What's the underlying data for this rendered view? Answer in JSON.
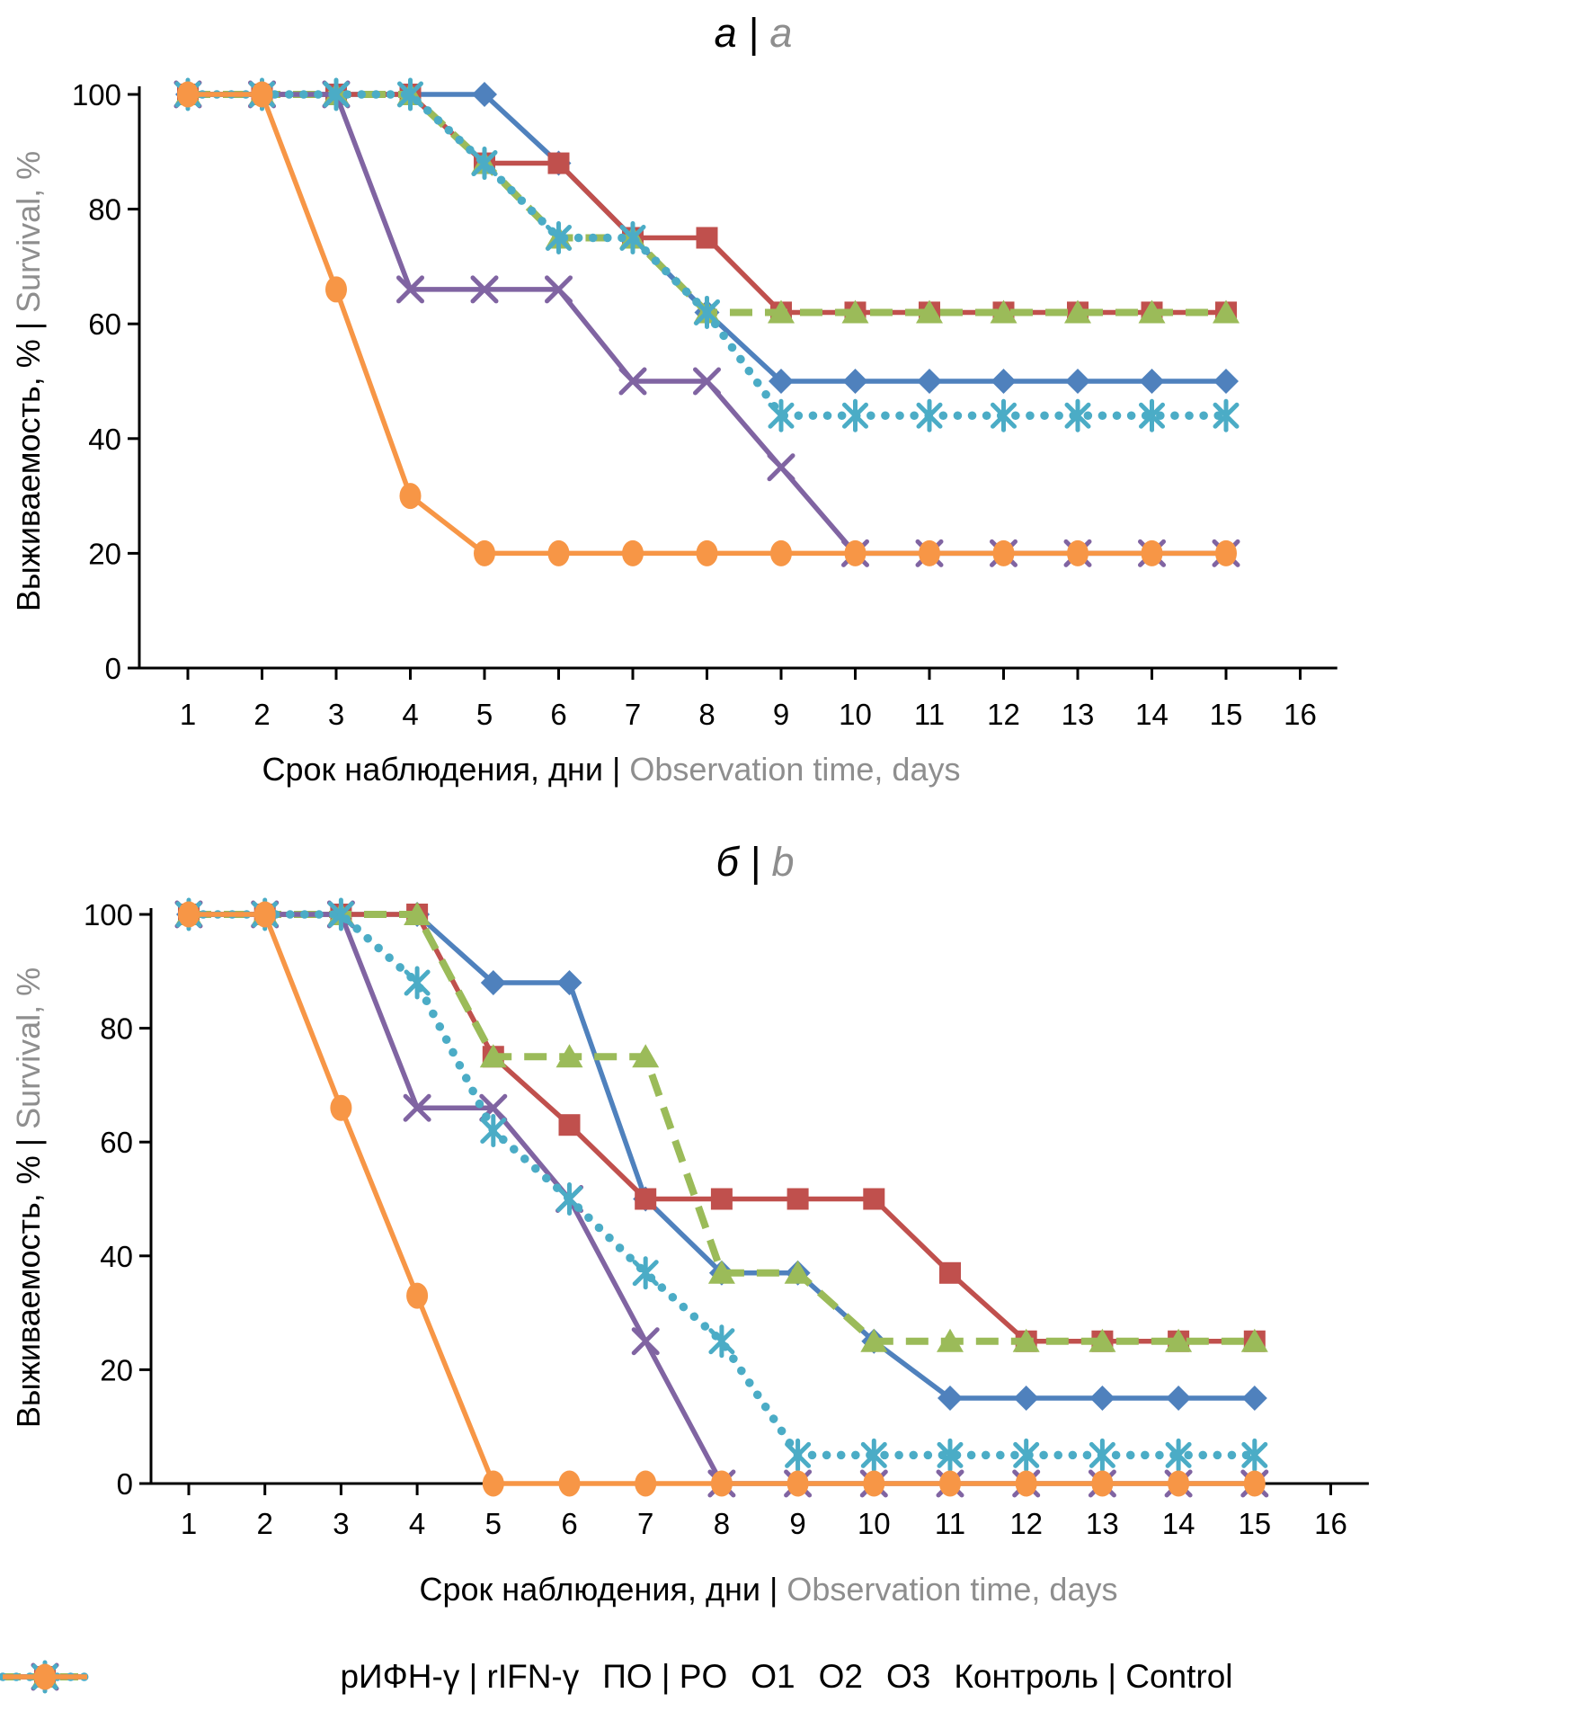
{
  "figure_titles": {
    "panel_a": {
      "primary": "а",
      "sep": " | ",
      "secondary": "a"
    },
    "panel_b": {
      "primary": "б",
      "sep": " | ",
      "secondary": "b"
    }
  },
  "axis_labels": {
    "x_primary": "Срок наблюдения, дни",
    "x_sep": " | ",
    "x_secondary": "Observation time, days",
    "y_primary": "Выживаемость, %",
    "y_sep": " | ",
    "y_secondary": "Survival, %"
  },
  "colors": {
    "blue": "#4F81BD",
    "red": "#C0504D",
    "green": "#9BBB59",
    "purple": "#8064A2",
    "teal": "#4BACC6",
    "orange": "#F79646",
    "secondary_text": "#8E8E8E",
    "axis": "#000000"
  },
  "legend": {
    "items": [
      {
        "label": "рИФН-γ | rIFN-γ",
        "key": "rifn"
      },
      {
        "label": "ПО | PO",
        "key": "po"
      },
      {
        "label": "О1",
        "key": "o1"
      },
      {
        "label": "О2",
        "key": "o2"
      },
      {
        "label": "О3",
        "key": "o3"
      },
      {
        "label": "Контроль | Control",
        "key": "control"
      }
    ]
  },
  "chart_data": [
    {
      "type": "line",
      "panel": "a",
      "title": "а | a",
      "xlabel": "Срок наблюдения, дни | Observation time, days",
      "ylabel": "Выживаемость, % | Survival, %",
      "x": [
        1,
        2,
        3,
        4,
        5,
        6,
        7,
        8,
        9,
        10,
        11,
        12,
        13,
        14,
        15
      ],
      "x_ticks": [
        1,
        2,
        3,
        4,
        5,
        6,
        7,
        8,
        9,
        10,
        11,
        12,
        13,
        14,
        15,
        16
      ],
      "y_ticks": [
        0,
        20,
        40,
        60,
        80,
        100
      ],
      "ylim": [
        0,
        100
      ],
      "grid": false,
      "legend_position": "bottom",
      "series": [
        {
          "name": "рИФН-γ | rIFN-γ",
          "key": "rifn",
          "color": "#4F81BD",
          "marker": "diamond",
          "line": "solid",
          "values": [
            100,
            100,
            100,
            100,
            100,
            88,
            75,
            62,
            50,
            50,
            50,
            50,
            50,
            50,
            50
          ]
        },
        {
          "name": "ПО | PO",
          "key": "po",
          "color": "#C0504D",
          "marker": "square",
          "line": "solid",
          "values": [
            100,
            100,
            100,
            100,
            88,
            88,
            75,
            75,
            62,
            62,
            62,
            62,
            62,
            62,
            62
          ]
        },
        {
          "name": "О1",
          "key": "o1",
          "color": "#9BBB59",
          "marker": "triangle",
          "line": "dashed",
          "values": [
            100,
            100,
            100,
            100,
            88,
            75,
            75,
            62,
            62,
            62,
            62,
            62,
            62,
            62,
            62
          ]
        },
        {
          "name": "О2",
          "key": "o2",
          "color": "#8064A2",
          "marker": "x",
          "line": "solid",
          "values": [
            100,
            100,
            100,
            66,
            66,
            66,
            50,
            50,
            35,
            20,
            20,
            20,
            20,
            20,
            20
          ]
        },
        {
          "name": "О3",
          "key": "o3",
          "color": "#4BACC6",
          "marker": "asterisk",
          "line": "dotted",
          "values": [
            100,
            100,
            100,
            100,
            88,
            75,
            75,
            62,
            44,
            44,
            44,
            44,
            44,
            44,
            44
          ]
        },
        {
          "name": "Контроль | Control",
          "key": "control",
          "color": "#F79646",
          "marker": "circle",
          "line": "solid",
          "values": [
            100,
            100,
            66,
            30,
            20,
            20,
            20,
            20,
            20,
            20,
            20,
            20,
            20,
            20,
            20
          ]
        }
      ]
    },
    {
      "type": "line",
      "panel": "b",
      "title": "б | b",
      "xlabel": "Срок наблюдения, дни | Observation time, days",
      "ylabel": "Выживаемость, % | Survival, %",
      "x": [
        1,
        2,
        3,
        4,
        5,
        6,
        7,
        8,
        9,
        10,
        11,
        12,
        13,
        14,
        15
      ],
      "x_ticks": [
        1,
        2,
        3,
        4,
        5,
        6,
        7,
        8,
        9,
        10,
        11,
        12,
        13,
        14,
        15,
        16
      ],
      "y_ticks": [
        0,
        20,
        40,
        60,
        80,
        100
      ],
      "ylim": [
        0,
        100
      ],
      "grid": false,
      "legend_position": "bottom",
      "series": [
        {
          "name": "рИФН-γ | rIFN-γ",
          "key": "rifn",
          "color": "#4F81BD",
          "marker": "diamond",
          "line": "solid",
          "values": [
            100,
            100,
            100,
            100,
            88,
            88,
            50,
            37,
            37,
            25,
            15,
            15,
            15,
            15,
            15
          ]
        },
        {
          "name": "ПО | PO",
          "key": "po",
          "color": "#C0504D",
          "marker": "square",
          "line": "solid",
          "values": [
            100,
            100,
            100,
            100,
            75,
            63,
            50,
            50,
            50,
            50,
            37,
            25,
            25,
            25,
            25
          ]
        },
        {
          "name": "О1",
          "key": "o1",
          "color": "#9BBB59",
          "marker": "triangle",
          "line": "dashed",
          "values": [
            100,
            100,
            100,
            100,
            75,
            75,
            75,
            37,
            37,
            25,
            25,
            25,
            25,
            25,
            25
          ]
        },
        {
          "name": "О2",
          "key": "o2",
          "color": "#8064A2",
          "marker": "x",
          "line": "solid",
          "values": [
            100,
            100,
            100,
            66,
            66,
            50,
            25,
            0,
            0,
            0,
            0,
            0,
            0,
            0,
            0
          ]
        },
        {
          "name": "О3",
          "key": "o3",
          "color": "#4BACC6",
          "marker": "asterisk",
          "line": "dotted",
          "values": [
            100,
            100,
            100,
            88,
            62,
            50,
            37,
            25,
            5,
            5,
            5,
            5,
            5,
            5,
            5
          ]
        },
        {
          "name": "Контроль | Control",
          "key": "control",
          "color": "#F79646",
          "marker": "circle",
          "line": "solid",
          "values": [
            100,
            100,
            66,
            33,
            0,
            0,
            0,
            0,
            0,
            0,
            0,
            0,
            0,
            0,
            0
          ]
        }
      ]
    }
  ]
}
